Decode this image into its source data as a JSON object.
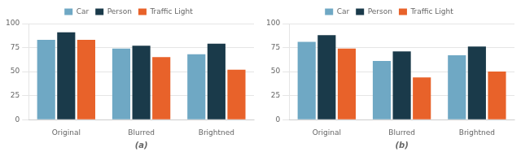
{
  "chart_data": [
    {
      "type": "bar",
      "categories": [
        "Original",
        "Blurred",
        "Brightned"
      ],
      "series": [
        {
          "name": "Car",
          "color": "#6FA8C4",
          "values": [
            83,
            74,
            68
          ]
        },
        {
          "name": "Person",
          "color": "#1A3A4A",
          "values": [
            91,
            77,
            79
          ]
        },
        {
          "name": "Traffic Light",
          "color": "#E8622A",
          "values": [
            83,
            65,
            52
          ]
        }
      ],
      "x_label": "(a)",
      "ylim": [
        0,
        100
      ],
      "yticks": [
        0,
        25,
        50,
        75,
        100
      ],
      "grid": true,
      "legend": "top"
    },
    {
      "type": "bar",
      "categories": [
        "Original",
        "Blurred",
        "Brightned"
      ],
      "series": [
        {
          "name": "Car",
          "color": "#6FA8C4",
          "values": [
            81,
            61,
            67
          ]
        },
        {
          "name": "Person",
          "color": "#1A3A4A",
          "values": [
            88,
            71,
            76
          ]
        },
        {
          "name": "Traffic Light",
          "color": "#E8622A",
          "values": [
            74,
            44,
            50
          ]
        }
      ],
      "x_label": "(b)",
      "ylim": [
        0,
        100
      ],
      "yticks": [
        0,
        25,
        50,
        75,
        100
      ],
      "grid": true,
      "legend": "top"
    }
  ]
}
